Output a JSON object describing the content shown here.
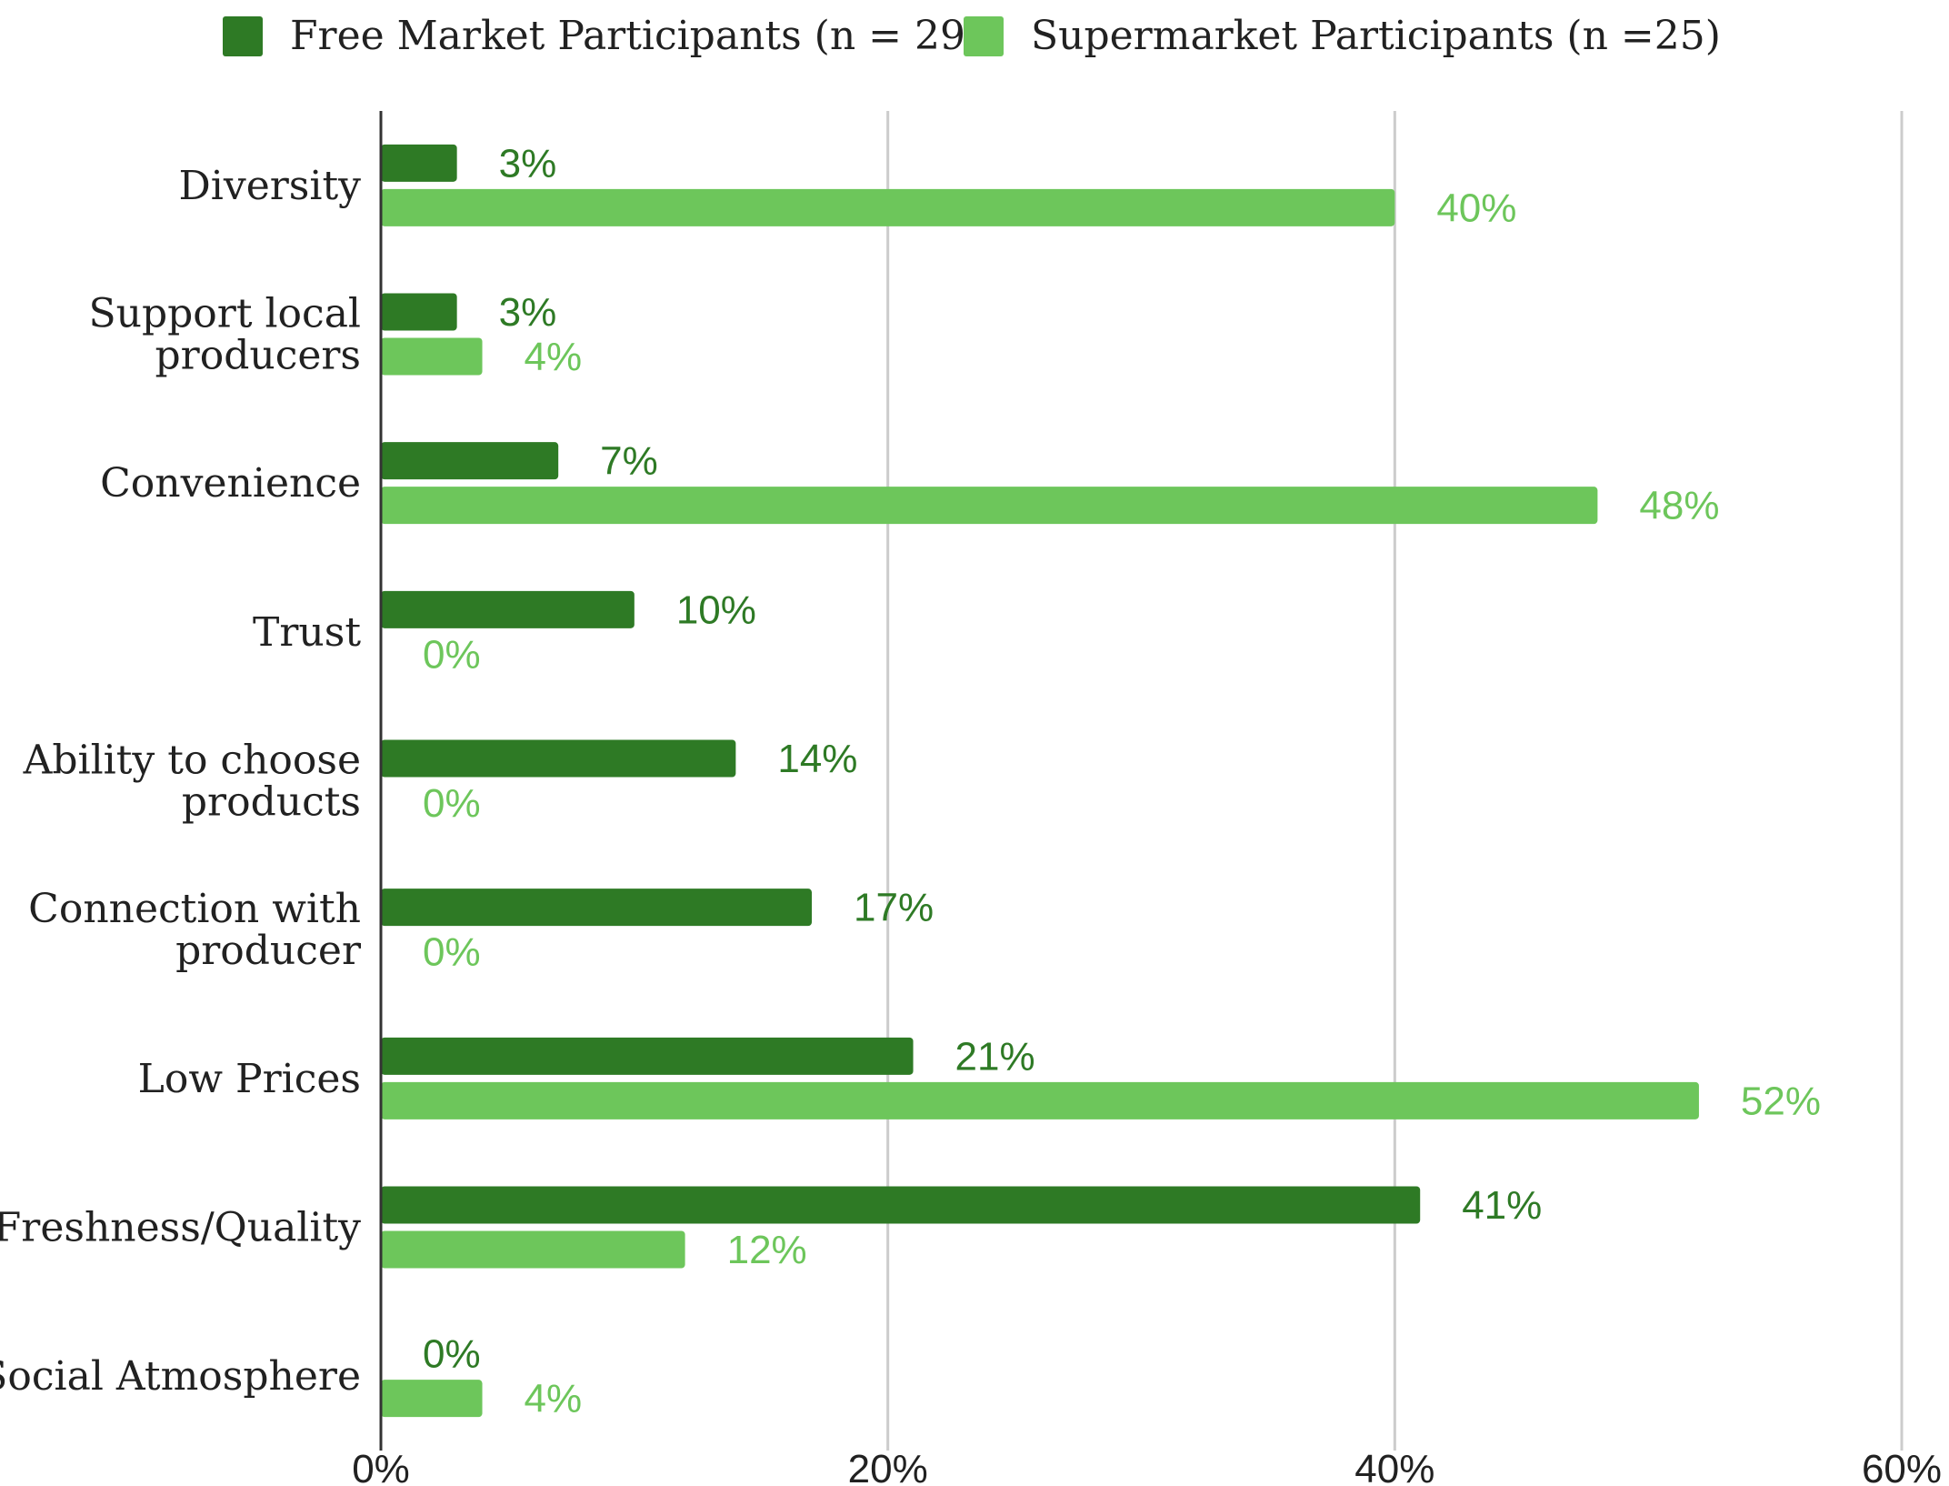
{
  "chart_data": {
    "type": "bar",
    "orientation": "horizontal",
    "categories": [
      [
        "Diversity"
      ],
      [
        "Support local",
        "producers"
      ],
      [
        "Convenience"
      ],
      [
        "Trust"
      ],
      [
        "Ability to choose",
        "products"
      ],
      [
        "Connection with",
        "producer"
      ],
      [
        "Low Prices"
      ],
      [
        "Freshness/Quality"
      ],
      [
        "Social Atmosphere"
      ]
    ],
    "series": [
      {
        "name": "Free Market Participants (n = 29)",
        "color": "#2e7a25",
        "values": [
          3,
          3,
          7,
          10,
          14,
          17,
          21,
          41,
          0
        ],
        "labels": [
          "3%",
          "3%",
          "7%",
          "10%",
          "14%",
          "17%",
          "21%",
          "41%",
          "0%"
        ]
      },
      {
        "name": "Supermarket Participants (n =25)",
        "color": "#6dc65b",
        "values": [
          40,
          4,
          48,
          0,
          0,
          0,
          52,
          12,
          4
        ],
        "labels": [
          "40%",
          "4%",
          "48%",
          "0%",
          "0%",
          "0%",
          "52%",
          "12%",
          "4%"
        ]
      }
    ],
    "xlim": [
      0,
      60
    ],
    "xticks": [
      0,
      20,
      40,
      60
    ],
    "xtick_labels": [
      "0%",
      "20%",
      "40%",
      "60%"
    ],
    "grid": true,
    "legend_position": "top"
  }
}
